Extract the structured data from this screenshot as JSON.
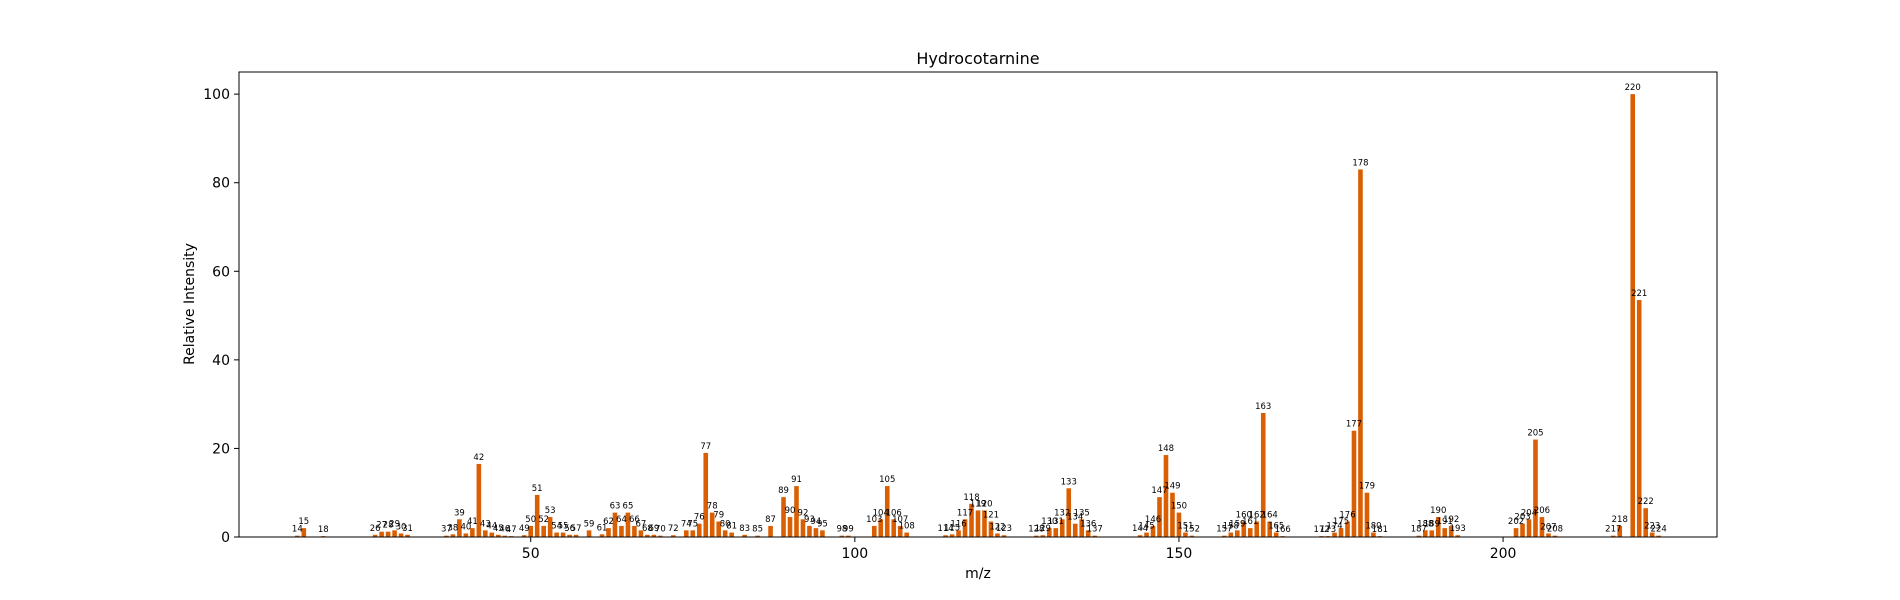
{
  "chart_data": {
    "type": "bar",
    "title": "Hydrocotarnine",
    "xlabel": "m/z",
    "ylabel": "Relative Intensity",
    "xlim": [
      5,
      233
    ],
    "ylim": [
      0,
      105
    ],
    "x_ticks": [
      50,
      100,
      150,
      200
    ],
    "y_ticks": [
      0,
      20,
      40,
      60,
      80,
      100
    ],
    "grid": false,
    "bar_color": "#d95f02",
    "points": [
      {
        "x": 14,
        "y": 0.3
      },
      {
        "x": 15,
        "y": 2.0
      },
      {
        "x": 18,
        "y": 0.2
      },
      {
        "x": 26,
        "y": 0.5
      },
      {
        "x": 27,
        "y": 1.2
      },
      {
        "x": 28,
        "y": 1.2
      },
      {
        "x": 29,
        "y": 1.5
      },
      {
        "x": 30,
        "y": 0.8
      },
      {
        "x": 31,
        "y": 0.5
      },
      {
        "x": 37,
        "y": 0.3
      },
      {
        "x": 38,
        "y": 0.6
      },
      {
        "x": 39,
        "y": 4.0
      },
      {
        "x": 40,
        "y": 0.8
      },
      {
        "x": 41,
        "y": 2.0
      },
      {
        "x": 42,
        "y": 16.5
      },
      {
        "x": 43,
        "y": 1.5
      },
      {
        "x": 44,
        "y": 1.0
      },
      {
        "x": 45,
        "y": 0.5
      },
      {
        "x": 46,
        "y": 0.3
      },
      {
        "x": 47,
        "y": 0.2
      },
      {
        "x": 49,
        "y": 0.4
      },
      {
        "x": 50,
        "y": 2.5
      },
      {
        "x": 51,
        "y": 9.5
      },
      {
        "x": 52,
        "y": 2.5
      },
      {
        "x": 53,
        "y": 4.5
      },
      {
        "x": 54,
        "y": 1.0
      },
      {
        "x": 55,
        "y": 1.0
      },
      {
        "x": 56,
        "y": 0.5
      },
      {
        "x": 57,
        "y": 0.5
      },
      {
        "x": 59,
        "y": 1.5
      },
      {
        "x": 61,
        "y": 0.6
      },
      {
        "x": 62,
        "y": 2.0
      },
      {
        "x": 63,
        "y": 5.5
      },
      {
        "x": 64,
        "y": 2.5
      },
      {
        "x": 65,
        "y": 5.5
      },
      {
        "x": 66,
        "y": 2.5
      },
      {
        "x": 67,
        "y": 1.5
      },
      {
        "x": 68,
        "y": 0.5
      },
      {
        "x": 69,
        "y": 0.5
      },
      {
        "x": 70,
        "y": 0.3
      },
      {
        "x": 72,
        "y": 0.4
      },
      {
        "x": 74,
        "y": 1.5
      },
      {
        "x": 75,
        "y": 1.5
      },
      {
        "x": 76,
        "y": 3.0
      },
      {
        "x": 77,
        "y": 19.0
      },
      {
        "x": 78,
        "y": 5.5
      },
      {
        "x": 79,
        "y": 3.5
      },
      {
        "x": 80,
        "y": 1.5
      },
      {
        "x": 81,
        "y": 1.0
      },
      {
        "x": 83,
        "y": 0.5
      },
      {
        "x": 85,
        "y": 0.3
      },
      {
        "x": 87,
        "y": 2.5
      },
      {
        "x": 89,
        "y": 9.0
      },
      {
        "x": 90,
        "y": 4.5
      },
      {
        "x": 91,
        "y": 11.5
      },
      {
        "x": 92,
        "y": 4.0
      },
      {
        "x": 93,
        "y": 2.5
      },
      {
        "x": 94,
        "y": 2.0
      },
      {
        "x": 95,
        "y": 1.5
      },
      {
        "x": 98,
        "y": 0.3
      },
      {
        "x": 99,
        "y": 0.3
      },
      {
        "x": 103,
        "y": 2.5
      },
      {
        "x": 104,
        "y": 4.0
      },
      {
        "x": 105,
        "y": 11.5
      },
      {
        "x": 106,
        "y": 4.0
      },
      {
        "x": 107,
        "y": 2.5
      },
      {
        "x": 108,
        "y": 1.0
      },
      {
        "x": 114,
        "y": 0.4
      },
      {
        "x": 115,
        "y": 0.6
      },
      {
        "x": 116,
        "y": 1.5
      },
      {
        "x": 117,
        "y": 4.0
      },
      {
        "x": 118,
        "y": 7.5
      },
      {
        "x": 119,
        "y": 6.0
      },
      {
        "x": 120,
        "y": 6.0
      },
      {
        "x": 121,
        "y": 3.5
      },
      {
        "x": 122,
        "y": 0.8
      },
      {
        "x": 123,
        "y": 0.4
      },
      {
        "x": 128,
        "y": 0.3
      },
      {
        "x": 129,
        "y": 0.4
      },
      {
        "x": 130,
        "y": 2.0
      },
      {
        "x": 131,
        "y": 2.0
      },
      {
        "x": 132,
        "y": 4.0
      },
      {
        "x": 133,
        "y": 11.0
      },
      {
        "x": 134,
        "y": 3.0
      },
      {
        "x": 135,
        "y": 4.0
      },
      {
        "x": 136,
        "y": 1.5
      },
      {
        "x": 137,
        "y": 0.3
      },
      {
        "x": 144,
        "y": 0.4
      },
      {
        "x": 145,
        "y": 1.0
      },
      {
        "x": 146,
        "y": 2.5
      },
      {
        "x": 147,
        "y": 9.0
      },
      {
        "x": 148,
        "y": 18.5
      },
      {
        "x": 149,
        "y": 10.0
      },
      {
        "x": 150,
        "y": 5.5
      },
      {
        "x": 151,
        "y": 1.0
      },
      {
        "x": 152,
        "y": 0.3
      },
      {
        "x": 157,
        "y": 0.3
      },
      {
        "x": 158,
        "y": 1.0
      },
      {
        "x": 159,
        "y": 1.5
      },
      {
        "x": 160,
        "y": 3.5
      },
      {
        "x": 161,
        "y": 2.0
      },
      {
        "x": 162,
        "y": 3.5
      },
      {
        "x": 163,
        "y": 28.0
      },
      {
        "x": 164,
        "y": 3.5
      },
      {
        "x": 165,
        "y": 1.0
      },
      {
        "x": 166,
        "y": 0.2
      },
      {
        "x": 172,
        "y": 0.2
      },
      {
        "x": 173,
        "y": 0.2
      },
      {
        "x": 174,
        "y": 1.0
      },
      {
        "x": 175,
        "y": 2.0
      },
      {
        "x": 176,
        "y": 3.5
      },
      {
        "x": 177,
        "y": 24.0
      },
      {
        "x": 178,
        "y": 83.0
      },
      {
        "x": 179,
        "y": 10.0
      },
      {
        "x": 180,
        "y": 1.0
      },
      {
        "x": 181,
        "y": 0.2
      },
      {
        "x": 187,
        "y": 0.3
      },
      {
        "x": 188,
        "y": 1.5
      },
      {
        "x": 189,
        "y": 1.5
      },
      {
        "x": 190,
        "y": 4.5
      },
      {
        "x": 191,
        "y": 2.0
      },
      {
        "x": 192,
        "y": 2.5
      },
      {
        "x": 193,
        "y": 0.4
      },
      {
        "x": 202,
        "y": 2.0
      },
      {
        "x": 203,
        "y": 3.0
      },
      {
        "x": 204,
        "y": 4.0
      },
      {
        "x": 205,
        "y": 22.0
      },
      {
        "x": 206,
        "y": 4.5
      },
      {
        "x": 207,
        "y": 0.8
      },
      {
        "x": 208,
        "y": 0.3
      },
      {
        "x": 217,
        "y": 0.3
      },
      {
        "x": 218,
        "y": 2.5
      },
      {
        "x": 220,
        "y": 100.0
      },
      {
        "x": 221,
        "y": 53.5
      },
      {
        "x": 222,
        "y": 6.5
      },
      {
        "x": 223,
        "y": 1.0
      },
      {
        "x": 224,
        "y": 0.3
      }
    ]
  }
}
